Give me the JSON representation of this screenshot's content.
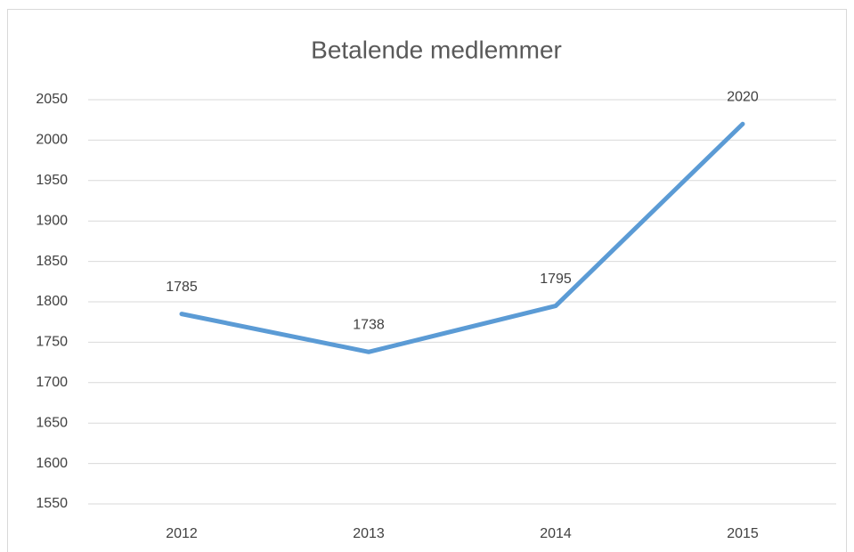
{
  "chart_data": {
    "type": "line",
    "title": "Betalende medlemmer",
    "categories": [
      "2012",
      "2013",
      "2014",
      "2015"
    ],
    "series": [
      {
        "name": "Betalende medlemmer",
        "color": "#5b9bd5",
        "values": [
          1785,
          1738,
          1795,
          2020
        ]
      }
    ],
    "ylim": [
      1550,
      2050
    ],
    "yticks": [
      1550,
      1600,
      1650,
      1700,
      1750,
      1800,
      1850,
      1900,
      1950,
      2000,
      2050
    ],
    "grid": true,
    "data_labels": true
  }
}
